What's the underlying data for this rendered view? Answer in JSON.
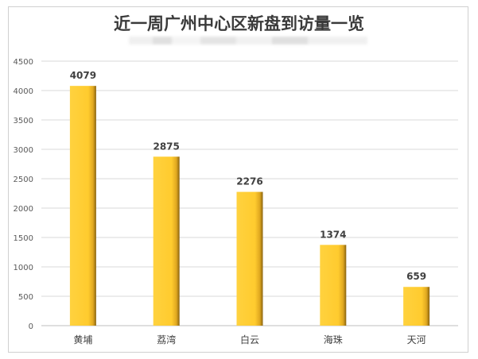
{
  "chart_data": {
    "type": "bar",
    "title": "近一周广州中心区新盘到访量一览",
    "categories": [
      "黄埔",
      "荔湾",
      "白云",
      "海珠",
      "天河"
    ],
    "values": [
      4079,
      2875,
      2276,
      1374,
      659
    ],
    "ylim": [
      0,
      4500
    ],
    "yticks": [
      0,
      500,
      1000,
      1500,
      2000,
      2500,
      3000,
      3500,
      4000,
      4500
    ],
    "grid": true,
    "legend": "none",
    "bar_color": "#ffcc33",
    "bar_edge_color": "#a07810"
  }
}
